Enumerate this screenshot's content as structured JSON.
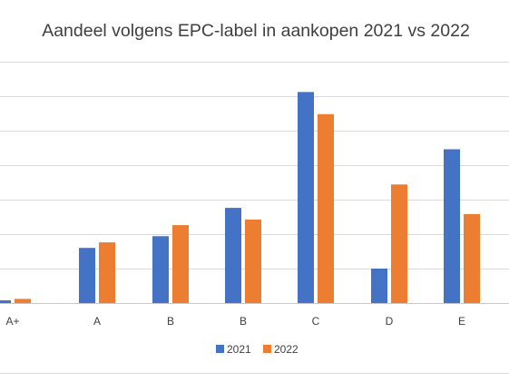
{
  "chart_data": {
    "type": "bar",
    "title": "Aandeel volgens EPC-label in aankopen 2021 vs 2022",
    "xlabel": "",
    "ylabel": "",
    "categories": [
      "A+",
      "A",
      "B",
      "B",
      "C",
      "D",
      "E"
    ],
    "series": [
      {
        "name": "2021",
        "color": "#4472C4",
        "values": [
          0.4,
          8.0,
          9.7,
          13.8,
          30.6,
          5.0,
          22.3
        ]
      },
      {
        "name": "2022",
        "color": "#ED7D31",
        "values": [
          0.6,
          8.8,
          11.3,
          12.1,
          27.4,
          17.2,
          12.9
        ]
      }
    ],
    "ylim": [
      0,
      35
    ],
    "gridlines": [
      0,
      5,
      10,
      15,
      20,
      25,
      30,
      35
    ],
    "grid": true,
    "legend_position": "bottom"
  }
}
